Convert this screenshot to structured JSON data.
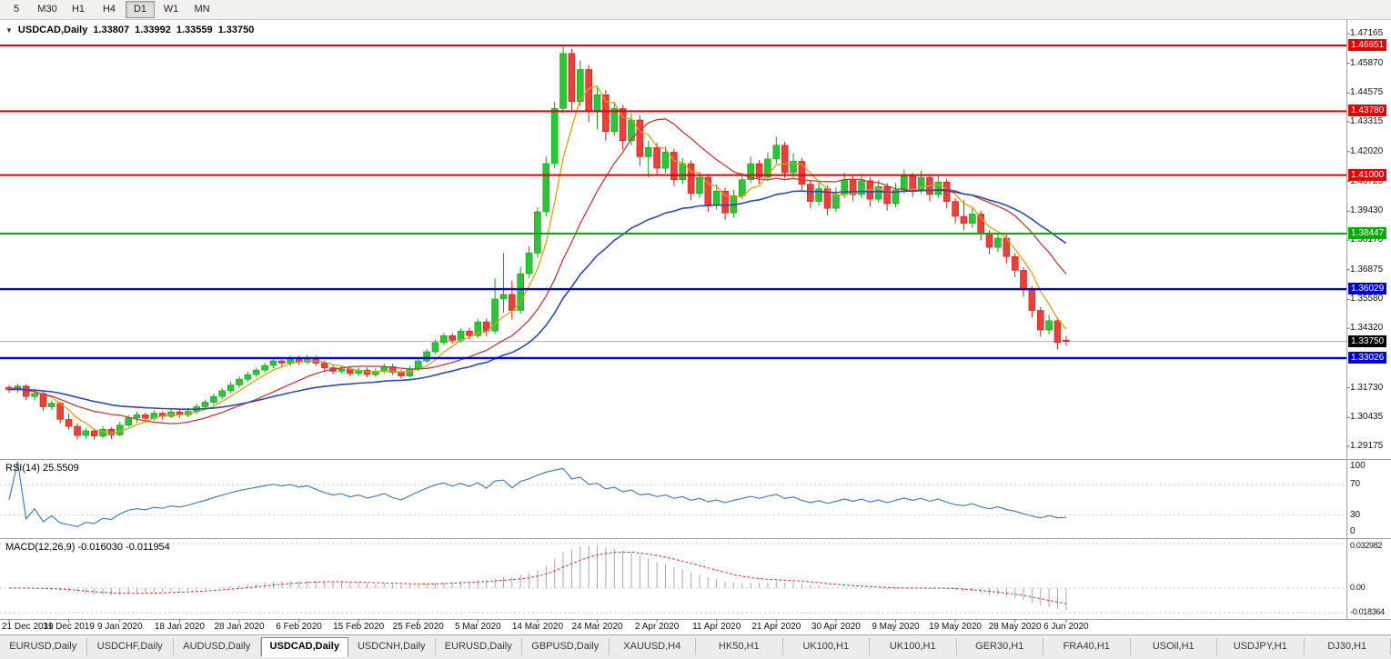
{
  "toolbar": {
    "timeframes": [
      {
        "label": "5",
        "active": false
      },
      {
        "label": "M30",
        "active": false
      },
      {
        "label": "H1",
        "active": false
      },
      {
        "label": "H4",
        "active": false
      },
      {
        "label": "D1",
        "active": true
      },
      {
        "label": "W1",
        "active": false
      },
      {
        "label": "MN",
        "active": false
      }
    ]
  },
  "title": {
    "dropdown_icon": "▼",
    "symbol": "USDCAD,Daily",
    "open": "1.33807",
    "high": "1.33992",
    "low": "1.33559",
    "close": "1.33750"
  },
  "indicators": {
    "rsi_label": "RSI(14) 25.5509",
    "macd_label": "MACD(12,26,9) -0.016030 -0.011954"
  },
  "tabs": [
    {
      "label": "EURUSD,Daily",
      "active": false
    },
    {
      "label": "USDCHF,Daily",
      "active": false
    },
    {
      "label": "AUDUSD,Daily",
      "active": false
    },
    {
      "label": "USDCAD,Daily",
      "active": true
    },
    {
      "label": "USDCNH,Daily",
      "active": false
    },
    {
      "label": "EURUSD,Daily",
      "active": false
    },
    {
      "label": "GBPUSD,Daily",
      "active": false
    },
    {
      "label": "XAUUSD,H4",
      "active": false
    },
    {
      "label": "HK50,H1",
      "active": false
    },
    {
      "label": "UK100,H1",
      "active": false
    },
    {
      "label": "UK100,H1",
      "active": false
    },
    {
      "label": "GER30,H1",
      "active": false
    },
    {
      "label": "FRA40,H1",
      "active": false
    },
    {
      "label": "USOil,H1",
      "active": false
    },
    {
      "label": "USDJPY,H1",
      "active": false
    },
    {
      "label": "DJ30,H1",
      "active": false
    }
  ],
  "colors": {
    "bull": "#2fc437",
    "bull_border": "#129a1a",
    "bear": "#e8403a",
    "bear_border": "#bf211c",
    "resistance": "#e00000",
    "support_green": "#00aa00",
    "support_blue": "#0000d0",
    "current_price_line": "#b0b0b0",
    "current_price_badge": "#000000",
    "ma_fast": "#d8a018",
    "ma_mid": "#c23a3a",
    "ma_slow": "#2f49b4",
    "rsi_line": "#4a7fb5",
    "macd_hist": "#a8a8a8",
    "macd_signal": "#c23a3a"
  },
  "chart_data": {
    "type": "candlestick",
    "symbol": "USDCAD",
    "timeframe": "Daily",
    "current_price": 1.3375,
    "current_price_label": "1.33750",
    "price_axis_ticks": [
      {
        "label": "1.47165",
        "value": 1.47165
      },
      {
        "label": "1.45870",
        "value": 1.4587
      },
      {
        "label": "1.44575",
        "value": 1.44575
      },
      {
        "label": "1.43315",
        "value": 1.43315
      },
      {
        "label": "1.42020",
        "value": 1.4202
      },
      {
        "label": "1.40725",
        "value": 1.40725
      },
      {
        "label": "1.39430",
        "value": 1.3943
      },
      {
        "label": "1.38170",
        "value": 1.3817
      },
      {
        "label": "1.36875",
        "value": 1.36875
      },
      {
        "label": "1.35580",
        "value": 1.3558
      },
      {
        "label": "1.34320",
        "value": 1.3432
      },
      {
        "label": "1.31730",
        "value": 1.3173
      },
      {
        "label": "1.30435",
        "value": 1.30435
      },
      {
        "label": "1.29175",
        "value": 1.29175
      }
    ],
    "sr_levels": [
      {
        "price": 1.46651,
        "label": "1.46651",
        "kind": "resistance"
      },
      {
        "price": 1.4378,
        "label": "1.43780",
        "kind": "resistance"
      },
      {
        "price": 1.41,
        "label": "1.41000",
        "kind": "resistance"
      },
      {
        "price": 1.38447,
        "label": "1.38447",
        "kind": "support_green"
      },
      {
        "price": 1.36029,
        "label": "1.36029",
        "kind": "support_blue"
      },
      {
        "price": 1.33026,
        "label": "1.33026",
        "kind": "support_blue"
      }
    ],
    "rsi_axis": [
      {
        "label": "100",
        "value": 100
      },
      {
        "label": "70",
        "value": 70
      },
      {
        "label": "30",
        "value": 30
      },
      {
        "label": "0",
        "value": 0
      }
    ],
    "rsi_levels": [
      70,
      30
    ],
    "rsi_period": 14,
    "rsi_current": 25.5509,
    "macd_axis": [
      {
        "label": "0.032982",
        "value": 0.032982
      },
      {
        "label": "0.00",
        "value": 0
      },
      {
        "label": "-0.018364",
        "value": -0.018364
      }
    ],
    "macd_params": [
      12,
      26,
      9
    ],
    "macd_current": [
      -0.01603,
      -0.011954
    ],
    "moving_averages": [
      {
        "period": 5,
        "method": "sma",
        "color_key": "ma_fast"
      },
      {
        "period": 14,
        "method": "sma",
        "color_key": "ma_mid"
      },
      {
        "period": 34,
        "method": "ema",
        "color_key": "ma_slow"
      }
    ],
    "date_ticks": [
      {
        "label": "21 Dec 2019",
        "candle": 0
      },
      {
        "label": "31 Dec 2019",
        "candle": 7
      },
      {
        "label": "9 Jan 2020",
        "candle": 13
      },
      {
        "label": "18 Jan 2020",
        "candle": 20
      },
      {
        "label": "28 Jan 2020",
        "candle": 27
      },
      {
        "label": "6 Feb 2020",
        "candle": 34
      },
      {
        "label": "15 Feb 2020",
        "candle": 41
      },
      {
        "label": "25 Feb 2020",
        "candle": 48
      },
      {
        "label": "5 Mar 2020",
        "candle": 55
      },
      {
        "label": "14 Mar 2020",
        "candle": 62
      },
      {
        "label": "24 Mar 2020",
        "candle": 69
      },
      {
        "label": "2 Apr 2020",
        "candle": 76
      },
      {
        "label": "11 Apr 2020",
        "candle": 83
      },
      {
        "label": "21 Apr 2020",
        "candle": 90
      },
      {
        "label": "30 Apr 2020",
        "candle": 97
      },
      {
        "label": "9 May 2020",
        "candle": 104
      },
      {
        "label": "19 May 2020",
        "candle": 111
      },
      {
        "label": "28 May 2020",
        "candle": 118
      },
      {
        "label": "6 Jun 2020",
        "candle": 124
      }
    ],
    "candles": [
      [
        1.3175,
        1.3185,
        1.315,
        1.3165
      ],
      [
        1.3165,
        1.319,
        1.315,
        1.318
      ],
      [
        1.318,
        1.3188,
        1.312,
        1.3135
      ],
      [
        1.3135,
        1.316,
        1.3118,
        1.3148
      ],
      [
        1.3148,
        1.3155,
        1.3072,
        1.309
      ],
      [
        1.309,
        1.3118,
        1.3075,
        1.3105
      ],
      [
        1.3105,
        1.3112,
        1.3018,
        1.3035
      ],
      [
        1.3035,
        1.306,
        1.299,
        1.3005
      ],
      [
        1.3005,
        1.3018,
        1.2948,
        1.2965
      ],
      [
        1.2965,
        1.2998,
        1.295,
        1.2985
      ],
      [
        1.2985,
        1.2995,
        1.2945,
        1.2962
      ],
      [
        1.2962,
        1.3005,
        1.2952,
        1.2992
      ],
      [
        1.2992,
        1.3,
        1.295,
        1.2968
      ],
      [
        1.2968,
        1.3025,
        1.296,
        1.301
      ],
      [
        1.301,
        1.3055,
        1.3,
        1.3042
      ],
      [
        1.3042,
        1.3068,
        1.302,
        1.3055
      ],
      [
        1.3055,
        1.3065,
        1.3028,
        1.304
      ],
      [
        1.304,
        1.3075,
        1.303,
        1.3062
      ],
      [
        1.3062,
        1.307,
        1.3034,
        1.3048
      ],
      [
        1.3048,
        1.3082,
        1.304,
        1.3068
      ],
      [
        1.3068,
        1.308,
        1.3042,
        1.3055
      ],
      [
        1.3055,
        1.3085,
        1.3045,
        1.307
      ],
      [
        1.307,
        1.3102,
        1.3058,
        1.309
      ],
      [
        1.309,
        1.3122,
        1.3078,
        1.311
      ],
      [
        1.311,
        1.3148,
        1.3098,
        1.3135
      ],
      [
        1.3135,
        1.3172,
        1.3122,
        1.316
      ],
      [
        1.316,
        1.3198,
        1.3148,
        1.3185
      ],
      [
        1.3185,
        1.3222,
        1.3172,
        1.321
      ],
      [
        1.321,
        1.3243,
        1.3198,
        1.323
      ],
      [
        1.323,
        1.3262,
        1.3218,
        1.325
      ],
      [
        1.325,
        1.3282,
        1.3238,
        1.327
      ],
      [
        1.327,
        1.3302,
        1.3258,
        1.329
      ],
      [
        1.329,
        1.3302,
        1.3265,
        1.328
      ],
      [
        1.328,
        1.3312,
        1.3268,
        1.33
      ],
      [
        1.33,
        1.3312,
        1.3272,
        1.3285
      ],
      [
        1.3285,
        1.3315,
        1.3275,
        1.33
      ],
      [
        1.33,
        1.3312,
        1.3268,
        1.328
      ],
      [
        1.328,
        1.3292,
        1.3248,
        1.326
      ],
      [
        1.326,
        1.3272,
        1.3232,
        1.3245
      ],
      [
        1.3245,
        1.3268,
        1.3235,
        1.3255
      ],
      [
        1.3255,
        1.3268,
        1.3222,
        1.3235
      ],
      [
        1.3235,
        1.3262,
        1.3225,
        1.325
      ],
      [
        1.325,
        1.3262,
        1.3218,
        1.323
      ],
      [
        1.323,
        1.3258,
        1.322,
        1.3245
      ],
      [
        1.3245,
        1.3278,
        1.3235,
        1.3265
      ],
      [
        1.3265,
        1.3277,
        1.3228,
        1.324
      ],
      [
        1.324,
        1.3252,
        1.3212,
        1.3225
      ],
      [
        1.3225,
        1.3268,
        1.3215,
        1.3255
      ],
      [
        1.3255,
        1.3302,
        1.3245,
        1.329
      ],
      [
        1.329,
        1.3342,
        1.328,
        1.333
      ],
      [
        1.333,
        1.3382,
        1.332,
        1.337
      ],
      [
        1.337,
        1.3412,
        1.3358,
        1.34
      ],
      [
        1.34,
        1.3412,
        1.3365,
        1.338
      ],
      [
        1.338,
        1.3432,
        1.337,
        1.342
      ],
      [
        1.342,
        1.3435,
        1.3382,
        1.34
      ],
      [
        1.34,
        1.3472,
        1.339,
        1.346
      ],
      [
        1.346,
        1.3475,
        1.3398,
        1.342
      ],
      [
        1.342,
        1.365,
        1.3408,
        1.356
      ],
      [
        1.356,
        1.376,
        1.35,
        1.358
      ],
      [
        1.358,
        1.364,
        1.347,
        1.351
      ],
      [
        1.351,
        1.37,
        1.3495,
        1.367
      ],
      [
        1.367,
        1.379,
        1.365,
        1.376
      ],
      [
        1.376,
        1.396,
        1.374,
        1.394
      ],
      [
        1.394,
        1.418,
        1.392,
        1.415
      ],
      [
        1.415,
        1.442,
        1.413,
        1.439
      ],
      [
        1.439,
        1.4669,
        1.437,
        1.463
      ],
      [
        1.463,
        1.465,
        1.438,
        1.442
      ],
      [
        1.442,
        1.46,
        1.44,
        1.456
      ],
      [
        1.456,
        1.458,
        1.433,
        1.438
      ],
      [
        1.438,
        1.448,
        1.43,
        1.445
      ],
      [
        1.445,
        1.447,
        1.425,
        1.429
      ],
      [
        1.429,
        1.442,
        1.427,
        1.439
      ],
      [
        1.439,
        1.4405,
        1.421,
        1.425
      ],
      [
        1.425,
        1.437,
        1.423,
        1.434
      ],
      [
        1.434,
        1.436,
        1.414,
        1.418
      ],
      [
        1.418,
        1.425,
        1.409,
        1.422
      ],
      [
        1.422,
        1.424,
        1.41,
        1.413
      ],
      [
        1.413,
        1.4225,
        1.411,
        1.42
      ],
      [
        1.42,
        1.4215,
        1.4052,
        1.408
      ],
      [
        1.408,
        1.4175,
        1.406,
        1.415
      ],
      [
        1.415,
        1.4165,
        1.399,
        1.402
      ],
      [
        1.402,
        1.4115,
        1.4,
        1.409
      ],
      [
        1.409,
        1.4105,
        1.394,
        1.397
      ],
      [
        1.397,
        1.406,
        1.395,
        1.403
      ],
      [
        1.403,
        1.4045,
        1.3905,
        1.3935
      ],
      [
        1.3935,
        1.4035,
        1.3915,
        1.401
      ],
      [
        1.401,
        1.411,
        1.3995,
        1.408
      ],
      [
        1.408,
        1.418,
        1.4065,
        1.415
      ],
      [
        1.415,
        1.4165,
        1.4062,
        1.409
      ],
      [
        1.409,
        1.42,
        1.4075,
        1.417
      ],
      [
        1.417,
        1.4265,
        1.415,
        1.423
      ],
      [
        1.423,
        1.4245,
        1.4085,
        1.411
      ],
      [
        1.411,
        1.4195,
        1.409,
        1.416
      ],
      [
        1.416,
        1.4175,
        1.4035,
        1.406
      ],
      [
        1.406,
        1.4075,
        1.3955,
        1.3985
      ],
      [
        1.3985,
        1.407,
        1.3965,
        1.404
      ],
      [
        1.404,
        1.4055,
        1.3925,
        1.3955
      ],
      [
        1.3955,
        1.4045,
        1.394,
        1.4015
      ],
      [
        1.4015,
        1.411,
        1.4,
        1.408
      ],
      [
        1.408,
        1.4095,
        1.3985,
        1.4015
      ],
      [
        1.4015,
        1.4105,
        1.4,
        1.4075
      ],
      [
        1.4075,
        1.409,
        1.3965,
        1.3995
      ],
      [
        1.3995,
        1.408,
        1.398,
        1.405
      ],
      [
        1.405,
        1.4065,
        1.3945,
        1.3975
      ],
      [
        1.3975,
        1.4065,
        1.396,
        1.4035
      ],
      [
        1.4035,
        1.4125,
        1.402,
        1.4095
      ],
      [
        1.4095,
        1.411,
        1.4005,
        1.4035
      ],
      [
        1.4035,
        1.412,
        1.402,
        1.409
      ],
      [
        1.409,
        1.4105,
        1.3985,
        1.4015
      ],
      [
        1.4015,
        1.41,
        1.4,
        1.407
      ],
      [
        1.407,
        1.4085,
        1.3955,
        1.3985
      ],
      [
        1.3985,
        1.4,
        1.389,
        1.392
      ],
      [
        1.392,
        1.399,
        1.386,
        1.389
      ],
      [
        1.389,
        1.3955,
        1.387,
        1.393
      ],
      [
        1.393,
        1.3945,
        1.3815,
        1.3845
      ],
      [
        1.3845,
        1.386,
        1.3755,
        1.3785
      ],
      [
        1.3785,
        1.385,
        1.3765,
        1.3825
      ],
      [
        1.3825,
        1.384,
        1.3715,
        1.3745
      ],
      [
        1.3745,
        1.376,
        1.3655,
        1.3685
      ],
      [
        1.3685,
        1.37,
        1.357,
        1.36
      ],
      [
        1.36,
        1.3615,
        1.348,
        1.351
      ],
      [
        1.351,
        1.3525,
        1.3395,
        1.3425
      ],
      [
        1.3425,
        1.349,
        1.3405,
        1.3465
      ],
      [
        1.3465,
        1.348,
        1.334,
        1.337
      ],
      [
        1.33807,
        1.33992,
        1.33559,
        1.3375
      ]
    ]
  }
}
